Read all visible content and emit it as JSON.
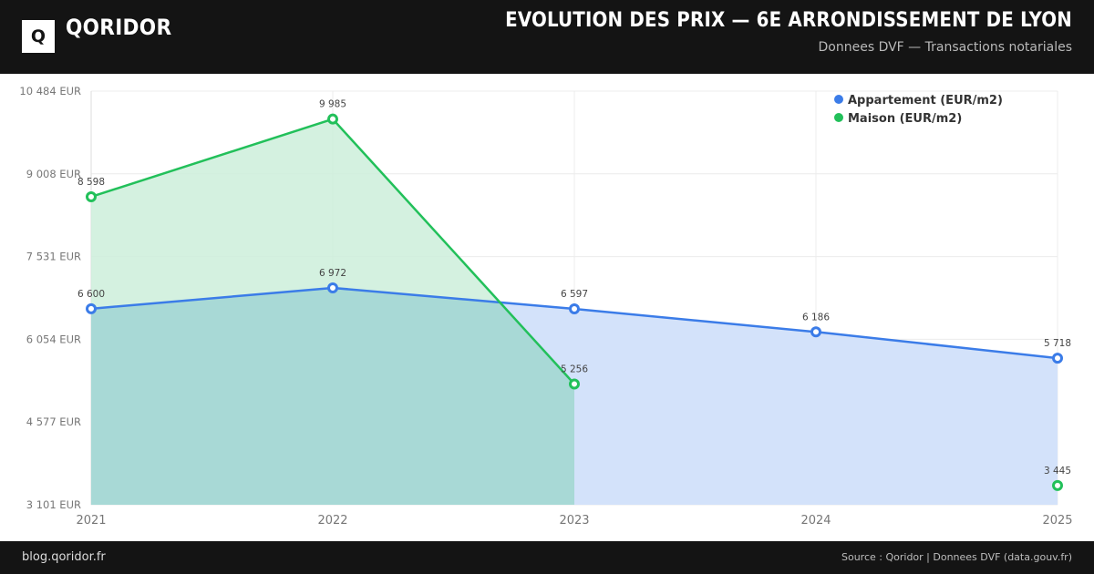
{
  "header": {
    "logo_letter": "Q",
    "brand": "QORIDOR",
    "title": "EVOLUTION DES PRIX — 6E ARRONDISSEMENT DE LYON",
    "subtitle": "Donnees DVF — Transactions notariales",
    "background": "#141414"
  },
  "footer": {
    "left": "blog.qoridor.fr",
    "right": "Source : Qoridor | Donnees DVF (data.gouv.fr)",
    "background": "#141414"
  },
  "chart_data": {
    "type": "area",
    "x": [
      2021,
      2022,
      2023,
      2024,
      2025
    ],
    "ylim": [
      3101,
      10484
    ],
    "yticks": [
      {
        "value": 10484,
        "label": "10 484 EUR"
      },
      {
        "value": 9008,
        "label": "9 008 EUR"
      },
      {
        "value": 7531,
        "label": "7 531 EUR"
      },
      {
        "value": 6054,
        "label": "6 054 EUR"
      },
      {
        "value": 4577,
        "label": "4 577 EUR"
      },
      {
        "value": 3101,
        "label": "3 101 EUR"
      }
    ],
    "xticks": [
      "2021",
      "2022",
      "2023",
      "2024",
      "2025"
    ],
    "grid": true,
    "legend_position": "top-right",
    "series": [
      {
        "name": "Appartement (EUR/m2)",
        "color": "#3b7ce8",
        "fill": "#d3e2fa",
        "values": [
          6600,
          6972,
          6597,
          6186,
          5718
        ],
        "labels": [
          "6 600",
          "6 972",
          "6 597",
          "6 186",
          "5 718"
        ],
        "filled_x": [
          2021,
          2022,
          2023,
          2024,
          2025
        ]
      },
      {
        "name": "Maison (EUR/m2)",
        "color": "#22c05a",
        "fill": "#cdeedb",
        "values": [
          8598,
          9985,
          5256,
          null,
          3445
        ],
        "labels": [
          "8 598",
          "9 985",
          "5 256",
          "",
          "3 445"
        ],
        "filled_x": [
          2021,
          2022,
          2023
        ]
      }
    ]
  }
}
